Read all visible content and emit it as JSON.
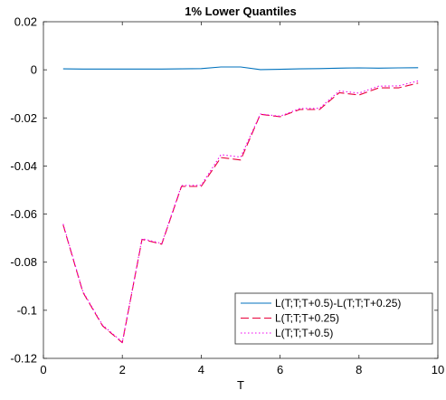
{
  "chart_data": {
    "type": "line",
    "title": "1% Lower Quantiles",
    "xlabel": "T",
    "ylabel": "",
    "xlim": [
      0,
      10
    ],
    "ylim": [
      -0.12,
      0.02
    ],
    "xticks": [
      0,
      2,
      4,
      6,
      8,
      10
    ],
    "xtick_labels": [
      "0",
      "2",
      "4",
      "6",
      "8",
      "10"
    ],
    "yticks": [
      -0.12,
      -0.1,
      -0.08,
      -0.06,
      -0.04,
      -0.02,
      0,
      0.02
    ],
    "ytick_labels": [
      "-0.12",
      "-0.1",
      "-0.08",
      "-0.06",
      "-0.04",
      "-0.02",
      "0",
      "0.02"
    ],
    "grid": false,
    "legend_position": "bottom-right",
    "x": [
      0.5,
      1.0,
      1.5,
      2.0,
      2.5,
      3.0,
      3.5,
      4.0,
      4.5,
      5.0,
      5.5,
      6.0,
      6.5,
      7.0,
      7.5,
      8.0,
      8.5,
      9.0,
      9.5
    ],
    "series": [
      {
        "name": "L(T;T;T+0.5)-L(T;T;T+0.25)",
        "color": "#0072BD",
        "style": "solid",
        "values": [
          0.0004,
          0.0003,
          0.0003,
          0.0003,
          0.0003,
          0.0003,
          0.0004,
          0.0005,
          0.0012,
          0.0012,
          0.0001,
          0.0002,
          0.0004,
          0.0005,
          0.0007,
          0.0008,
          0.0007,
          0.0008,
          0.0009
        ]
      },
      {
        "name": "L(T;T;T+0.25)",
        "color": "#E8003A",
        "style": "dashed",
        "values": [
          -0.0645,
          -0.0925,
          -0.1065,
          -0.1135,
          -0.0705,
          -0.0725,
          -0.0485,
          -0.0485,
          -0.0365,
          -0.0375,
          -0.0185,
          -0.0195,
          -0.0165,
          -0.0165,
          -0.0095,
          -0.0105,
          -0.0075,
          -0.0075,
          -0.0055
        ]
      },
      {
        "name": "L(T;T;T+0.5)",
        "color": "#F000F0",
        "style": "dotted",
        "values": [
          -0.0641,
          -0.0922,
          -0.1062,
          -0.1132,
          -0.0702,
          -0.0722,
          -0.0481,
          -0.048,
          -0.0353,
          -0.0363,
          -0.0184,
          -0.0193,
          -0.0161,
          -0.016,
          -0.0088,
          -0.0097,
          -0.0068,
          -0.0067,
          -0.0046
        ]
      }
    ]
  }
}
